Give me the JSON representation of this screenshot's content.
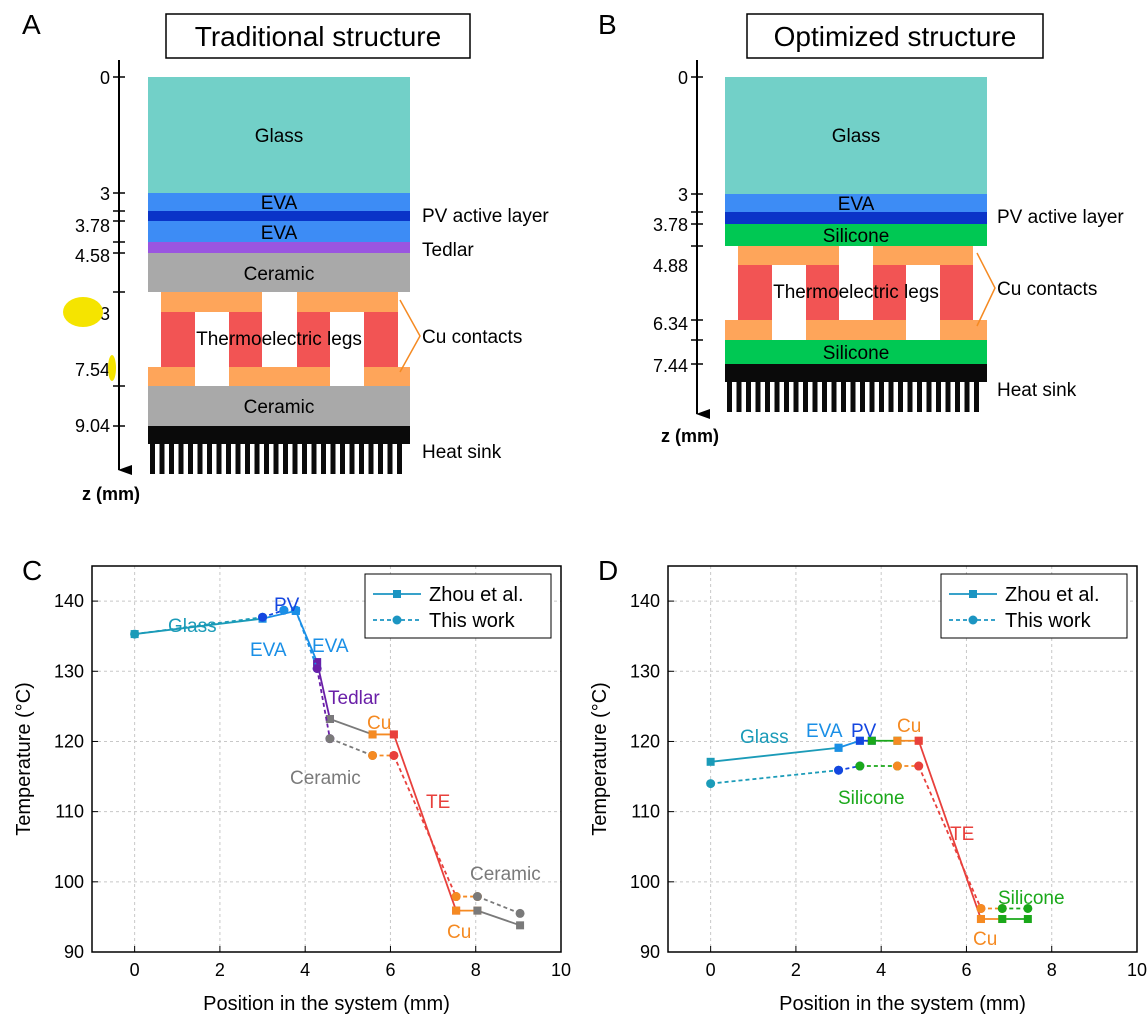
{
  "panel_letters": {
    "a": "A",
    "b": "B",
    "c": "C",
    "d": "D"
  },
  "panel_a": {
    "title": "Traditional structure",
    "layers": {
      "glass": "Glass",
      "eva": "EVA",
      "ceramic": "Ceramic"
    },
    "side_labels": {
      "pv": "PV active layer",
      "tedlar": "Tedlar",
      "cu": "Cu contacts",
      "sink": "Heat sink"
    },
    "center_label": "Thermoelectric legs",
    "ticks": [
      "0",
      "3",
      "3.78",
      "4.58",
      "3",
      "7.54",
      "9.04"
    ],
    "axis_label": "z (mm)"
  },
  "panel_b": {
    "title": "Optimized structure",
    "layers": {
      "glass": "Glass",
      "eva": "EVA",
      "silicone": "Silicone"
    },
    "side_labels": {
      "pv": "PV active layer",
      "cu": "Cu contacts",
      "sink": "Heat sink"
    },
    "center_label": "Thermoelectric legs",
    "ticks": [
      "0",
      "3",
      "3.78",
      "4.88",
      "6.34",
      "7.44"
    ],
    "axis_label": "z (mm)"
  },
  "colors": {
    "glass": "#72d0c8",
    "eva": "#3d8cf5",
    "pv": "#0a34c8",
    "tedlar": "#9a55e0",
    "ceramic": "#a9a9a9",
    "cu": "#fea55a",
    "te_leg": "#f25454",
    "silicone": "#00c853",
    "sink": "#0a0a0a",
    "zhou": "#1b95c2",
    "glass_series": "#1b9bb8",
    "eva_series": "#1a8fe6",
    "pv_series": "#1446e0",
    "tedlar_series": "#6a1fa8",
    "ceramic_series": "#7a7a7a",
    "cu_series": "#f58a22",
    "te_series": "#e8403c",
    "silicone_series": "#1aa81a",
    "highlight": "#f5e400"
  },
  "chart_data": [
    {
      "type": "line",
      "xlabel": "Position in the system (mm)",
      "ylabel": "Temperature (°C)",
      "xlim": [
        -1,
        10
      ],
      "ylim": [
        90,
        145
      ],
      "xticks": [
        0,
        2,
        4,
        6,
        8,
        10
      ],
      "yticks": [
        90,
        100,
        110,
        120,
        130,
        140
      ],
      "grid": true,
      "legend": {
        "position": "top-right",
        "entries": [
          "Zhou et al.",
          "This work"
        ]
      },
      "series": [
        {
          "name": "Zhou et al.",
          "segments": [
            {
              "layer": "glass",
              "points": [
                [
                  0,
                  135.3
                ],
                [
                  3,
                  137.5
                ]
              ]
            },
            {
              "layer": "eva",
              "points": [
                [
                  3,
                  137.5
                ],
                [
                  3.78,
                  138.6
                ]
              ]
            },
            {
              "layer": "eva",
              "points": [
                [
                  3.78,
                  138.6
                ],
                [
                  4.28,
                  131.3
                ]
              ]
            },
            {
              "layer": "tedlar",
              "points": [
                [
                  4.28,
                  131.3
                ],
                [
                  4.58,
                  123.2
                ]
              ]
            },
            {
              "layer": "ceramic",
              "points": [
                [
                  4.58,
                  123.2
                ],
                [
                  5.58,
                  121.0
                ]
              ]
            },
            {
              "layer": "cu",
              "points": [
                [
                  5.58,
                  121.0
                ],
                [
                  6.08,
                  121.0
                ]
              ]
            },
            {
              "layer": "te",
              "points": [
                [
                  6.08,
                  121.0
                ],
                [
                  7.54,
                  95.9
                ]
              ]
            },
            {
              "layer": "cu",
              "points": [
                [
                  7.54,
                  95.9
                ],
                [
                  8.04,
                  95.9
                ]
              ]
            },
            {
              "layer": "ceramic",
              "points": [
                [
                  8.04,
                  95.9
                ],
                [
                  9.04,
                  93.8
                ]
              ]
            }
          ]
        },
        {
          "name": "This work",
          "segments": [
            {
              "layer": "glass",
              "points": [
                [
                  0,
                  135.3
                ],
                [
                  3,
                  137.7
                ]
              ]
            },
            {
              "layer": "pv",
              "points": [
                [
                  3,
                  137.7
                ],
                [
                  3.5,
                  138.7
                ]
              ]
            },
            {
              "layer": "eva",
              "points": [
                [
                  3.5,
                  138.7
                ],
                [
                  3.78,
                  138.7
                ]
              ]
            },
            {
              "layer": "eva",
              "points": [
                [
                  3.78,
                  138.7
                ],
                [
                  4.28,
                  130.4
                ]
              ]
            },
            {
              "layer": "tedlar",
              "points": [
                [
                  4.28,
                  130.4
                ],
                [
                  4.58,
                  120.4
                ]
              ]
            },
            {
              "layer": "ceramic",
              "points": [
                [
                  4.58,
                  120.4
                ],
                [
                  5.58,
                  118.0
                ]
              ]
            },
            {
              "layer": "cu",
              "points": [
                [
                  5.58,
                  118.0
                ],
                [
                  6.08,
                  118.0
                ]
              ]
            },
            {
              "layer": "te",
              "points": [
                [
                  6.08,
                  118.0
                ],
                [
                  7.54,
                  97.9
                ]
              ]
            },
            {
              "layer": "cu",
              "points": [
                [
                  7.54,
                  97.9
                ],
                [
                  8.04,
                  97.9
                ]
              ]
            },
            {
              "layer": "ceramic",
              "points": [
                [
                  8.04,
                  97.9
                ],
                [
                  9.04,
                  95.5
                ]
              ]
            }
          ]
        }
      ],
      "annotations": {
        "glass": "Glass",
        "pv": "PV",
        "eva_left": "EVA",
        "eva_right": "EVA",
        "tedlar": "Tedlar",
        "cu_top": "Cu",
        "ceramic_mid": "Ceramic",
        "te": "TE",
        "ceramic_right": "Ceramic",
        "cu_bottom": "Cu"
      }
    },
    {
      "type": "line",
      "xlabel": "Position in the system (mm)",
      "ylabel": "Temperature (°C)",
      "xlim": [
        -1,
        10
      ],
      "ylim": [
        90,
        145
      ],
      "xticks": [
        0,
        2,
        4,
        6,
        8,
        10
      ],
      "yticks": [
        90,
        100,
        110,
        120,
        130,
        140
      ],
      "grid": true,
      "legend": {
        "position": "top-right",
        "entries": [
          "Zhou et al.",
          "This work"
        ]
      },
      "series": [
        {
          "name": "Zhou et al.",
          "segments": [
            {
              "layer": "glass",
              "points": [
                [
                  0,
                  117.1
                ],
                [
                  3,
                  119.1
                ]
              ]
            },
            {
              "layer": "eva",
              "points": [
                [
                  3,
                  119.1
                ],
                [
                  3.5,
                  120.1
                ]
              ]
            },
            {
              "layer": "pv",
              "points": [
                [
                  3.5,
                  120.1
                ],
                [
                  3.78,
                  120.1
                ]
              ]
            },
            {
              "layer": "silicone",
              "points": [
                [
                  3.78,
                  120.1
                ],
                [
                  4.38,
                  120.1
                ]
              ]
            },
            {
              "layer": "cu",
              "points": [
                [
                  4.38,
                  120.1
                ],
                [
                  4.88,
                  120.1
                ]
              ]
            },
            {
              "layer": "te",
              "points": [
                [
                  4.88,
                  120.1
                ],
                [
                  6.34,
                  94.7
                ]
              ]
            },
            {
              "layer": "cu",
              "points": [
                [
                  6.34,
                  94.7
                ],
                [
                  6.84,
                  94.7
                ]
              ]
            },
            {
              "layer": "silicone",
              "points": [
                [
                  6.84,
                  94.7
                ],
                [
                  7.44,
                  94.7
                ]
              ]
            }
          ]
        },
        {
          "name": "This work",
          "segments": [
            {
              "layer": "glass",
              "points": [
                [
                  0,
                  114.0
                ],
                [
                  3,
                  115.9
                ]
              ]
            },
            {
              "layer": "pv",
              "points": [
                [
                  3,
                  115.9
                ],
                [
                  3.5,
                  116.5
                ]
              ]
            },
            {
              "layer": "silicone",
              "points": [
                [
                  3.5,
                  116.5
                ],
                [
                  4.38,
                  116.5
                ]
              ]
            },
            {
              "layer": "cu",
              "points": [
                [
                  4.38,
                  116.5
                ],
                [
                  4.88,
                  116.5
                ]
              ]
            },
            {
              "layer": "te",
              "points": [
                [
                  4.88,
                  116.5
                ],
                [
                  6.34,
                  96.2
                ]
              ]
            },
            {
              "layer": "cu",
              "points": [
                [
                  6.34,
                  96.2
                ],
                [
                  6.84,
                  96.2
                ]
              ]
            },
            {
              "layer": "silicone",
              "points": [
                [
                  6.84,
                  96.2
                ],
                [
                  7.44,
                  96.2
                ]
              ]
            }
          ]
        }
      ],
      "annotations": {
        "glass": "Glass",
        "eva": "EVA",
        "pv": "PV",
        "cu_top": "Cu",
        "silicone_mid": "Silicone",
        "te": "TE",
        "silicone_right": "Silicone",
        "cu_bottom": "Cu"
      }
    }
  ]
}
